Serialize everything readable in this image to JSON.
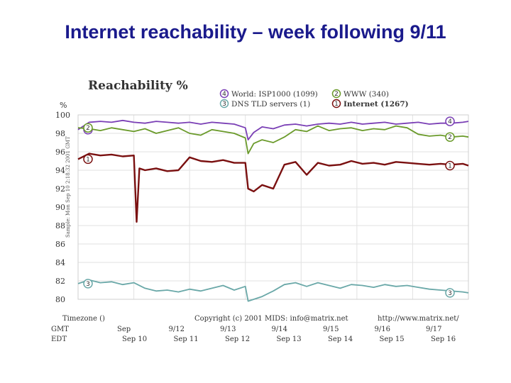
{
  "slide": {
    "title": "Internet reachability – week following 9/11"
  },
  "footer": {
    "timezone": "Timezone ()",
    "copyright": "Copyright (c) 2001 MIDS: info@matrix.net",
    "url": "http://www.matrix.net/",
    "tz_gmt": "GMT",
    "tz_edt": "EDT",
    "side_text": "Sample: Mon Sep 10 2:18:32 2001 GMT"
  },
  "chart_data": {
    "type": "line",
    "title": "Reachability %",
    "ylabel": "%",
    "ylim": [
      80,
      100
    ],
    "y_ticks": [
      100,
      98,
      96,
      94,
      92,
      90,
      88,
      86,
      84,
      82,
      80
    ],
    "grid": true,
    "legend_placement": "top-right",
    "x_tick_labels_gmt": [
      "Sep",
      "9/12",
      "9/13",
      "9/14",
      "9/15",
      "9/16",
      "9/17"
    ],
    "x_tick_labels_edt": [
      "Sep 10",
      "Sep 11",
      "Sep 12",
      "Sep 13",
      "Sep 14",
      "Sep 15",
      "Sep 16"
    ],
    "series": [
      {
        "id": "4",
        "name": "World: ISP1000 (1099)",
        "color": "#7a3fb5",
        "x": [
          0,
          0.2,
          0.4,
          0.6,
          0.8,
          1.0,
          1.2,
          1.4,
          1.6,
          1.8,
          2.0,
          2.2,
          2.4,
          2.6,
          2.8,
          3.0,
          3.05,
          3.15,
          3.3,
          3.5,
          3.7,
          3.9,
          4.1,
          4.3,
          4.5,
          4.7,
          4.9,
          5.1,
          5.3,
          5.5,
          5.7,
          5.9,
          6.1,
          6.3,
          6.5,
          6.7,
          6.9,
          7.0
        ],
        "values": [
          98.4,
          99.2,
          99.3,
          99.2,
          99.4,
          99.2,
          99.1,
          99.3,
          99.2,
          99.1,
          99.2,
          99.0,
          99.2,
          99.1,
          99.0,
          98.6,
          97.3,
          98.1,
          98.7,
          98.5,
          98.9,
          99.0,
          98.8,
          99.0,
          99.1,
          99.0,
          99.2,
          99.0,
          99.1,
          99.2,
          99.0,
          99.1,
          99.2,
          99.0,
          99.1,
          99.1,
          99.2,
          99.3
        ]
      },
      {
        "id": "2",
        "name": "WWW (340)",
        "color": "#6a9a2a",
        "x": [
          0,
          0.2,
          0.4,
          0.6,
          0.8,
          1.0,
          1.2,
          1.4,
          1.6,
          1.8,
          2.0,
          2.2,
          2.4,
          2.6,
          2.8,
          3.0,
          3.05,
          3.15,
          3.3,
          3.5,
          3.7,
          3.9,
          4.1,
          4.3,
          4.5,
          4.7,
          4.9,
          5.1,
          5.3,
          5.5,
          5.7,
          5.9,
          6.1,
          6.3,
          6.5,
          6.7,
          6.9,
          7.0
        ],
        "values": [
          98.6,
          98.5,
          98.3,
          98.6,
          98.4,
          98.2,
          98.5,
          98.0,
          98.3,
          98.6,
          98.0,
          97.8,
          98.4,
          98.2,
          98.0,
          97.5,
          95.8,
          96.9,
          97.3,
          97.0,
          97.6,
          98.4,
          98.2,
          98.8,
          98.3,
          98.5,
          98.6,
          98.3,
          98.5,
          98.4,
          98.8,
          98.6,
          97.9,
          97.7,
          97.8,
          97.6,
          97.7,
          97.6
        ]
      },
      {
        "id": "1",
        "name": "Internet (1267)",
        "color": "#7a1010",
        "x": [
          0,
          0.2,
          0.4,
          0.6,
          0.8,
          1.0,
          1.05,
          1.1,
          1.2,
          1.4,
          1.6,
          1.8,
          2.0,
          2.2,
          2.4,
          2.6,
          2.8,
          3.0,
          3.05,
          3.15,
          3.3,
          3.5,
          3.7,
          3.9,
          4.1,
          4.3,
          4.5,
          4.7,
          4.9,
          5.1,
          5.3,
          5.5,
          5.7,
          5.9,
          6.1,
          6.3,
          6.5,
          6.7,
          6.9,
          7.0
        ],
        "values": [
          95.2,
          95.8,
          95.6,
          95.7,
          95.5,
          95.6,
          88.4,
          94.2,
          94.0,
          94.2,
          93.9,
          94.0,
          95.4,
          95.0,
          94.9,
          95.1,
          94.8,
          94.8,
          92.0,
          91.7,
          92.4,
          92.0,
          94.6,
          94.9,
          93.5,
          94.8,
          94.5,
          94.6,
          95.0,
          94.7,
          94.8,
          94.6,
          94.9,
          94.8,
          94.7,
          94.6,
          94.7,
          94.6,
          94.7,
          94.5
        ]
      },
      {
        "id": "3",
        "name": "DNS TLD servers (1)",
        "color": "#6aa8a8",
        "x": [
          0,
          0.2,
          0.4,
          0.6,
          0.8,
          1.0,
          1.2,
          1.4,
          1.6,
          1.8,
          2.0,
          2.2,
          2.4,
          2.6,
          2.8,
          3.0,
          3.05,
          3.15,
          3.3,
          3.5,
          3.7,
          3.9,
          4.1,
          4.3,
          4.5,
          4.7,
          4.9,
          5.1,
          5.3,
          5.5,
          5.7,
          5.9,
          6.1,
          6.3,
          6.5,
          6.7,
          6.9,
          7.0
        ],
        "values": [
          81.7,
          82.1,
          81.8,
          81.9,
          81.6,
          81.8,
          81.2,
          80.9,
          81.0,
          80.8,
          81.1,
          80.9,
          81.2,
          81.5,
          81.0,
          81.4,
          79.8,
          80.0,
          80.3,
          80.9,
          81.6,
          81.8,
          81.4,
          81.8,
          81.5,
          81.2,
          81.6,
          81.5,
          81.3,
          81.6,
          81.4,
          81.5,
          81.3,
          81.1,
          81.0,
          80.9,
          80.8,
          80.7
        ]
      }
    ]
  }
}
